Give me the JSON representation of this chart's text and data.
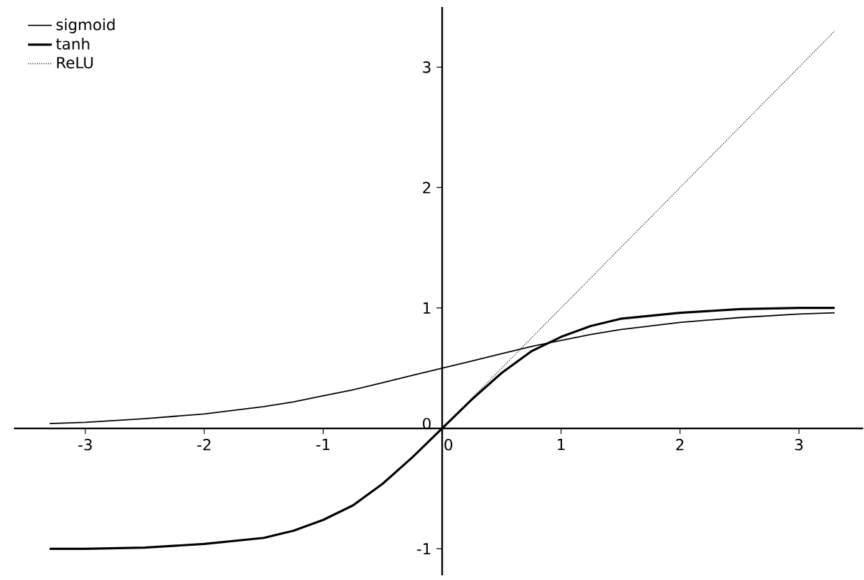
{
  "chart_data": {
    "type": "line",
    "x": [
      -3.3,
      -3,
      -2.5,
      -2,
      -1.5,
      -1.25,
      -1,
      -0.75,
      -0.5,
      -0.25,
      0,
      0.25,
      0.5,
      0.75,
      1,
      1.25,
      1.5,
      2,
      2.5,
      3,
      3.3
    ],
    "series": [
      {
        "name": "sigmoid",
        "color": "#000000",
        "line_style": "solid",
        "values": [
          0.04,
          0.05,
          0.08,
          0.12,
          0.18,
          0.22,
          0.27,
          0.32,
          0.38,
          0.44,
          0.5,
          0.56,
          0.62,
          0.68,
          0.73,
          0.78,
          0.82,
          0.88,
          0.92,
          0.95,
          0.96
        ]
      },
      {
        "name": "tanh",
        "color": "#000000",
        "line_style": "solid",
        "values": [
          -1,
          -1,
          -0.99,
          -0.96,
          -0.91,
          -0.85,
          -0.76,
          -0.64,
          -0.46,
          -0.24,
          0,
          0.24,
          0.46,
          0.64,
          0.76,
          0.85,
          0.91,
          0.96,
          0.99,
          1,
          1
        ]
      },
      {
        "name": "ReLU",
        "color": "#000000",
        "line_style": "dotted",
        "x": [
          -3.3,
          0,
          3.3
        ],
        "values": [
          0,
          0,
          3.3
        ]
      }
    ],
    "xlim": [
      -3.6,
      3.54
    ],
    "ylim": [
      -1.22,
      3.5
    ],
    "xticks": [
      -3,
      -2,
      -1,
      0,
      1,
      2,
      3
    ],
    "yticks": [
      -1,
      0,
      1,
      2,
      3
    ],
    "legend": "top left",
    "grid": false
  }
}
